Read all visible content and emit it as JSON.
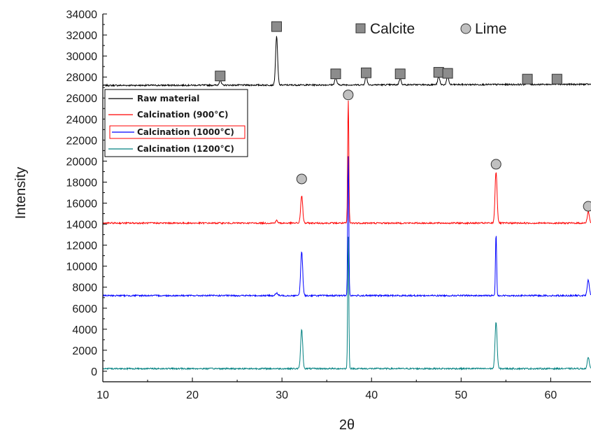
{
  "chart_data": {
    "type": "line",
    "xlabel": "2θ",
    "ylabel": "Intensity",
    "xlim": [
      10,
      64.5
    ],
    "ylim": [
      -1000,
      34000
    ],
    "x_ticks": [
      10,
      20,
      30,
      40,
      50,
      60
    ],
    "y_ticks": [
      0,
      2000,
      4000,
      6000,
      8000,
      10000,
      12000,
      14000,
      16000,
      18000,
      20000,
      22000,
      24000,
      26000,
      28000,
      30000,
      32000,
      34000
    ],
    "grid": false,
    "legend_position": "upper-left",
    "series": [
      {
        "name": "Raw material",
        "color": "#000000",
        "baseline": 27200,
        "peaks": [
          {
            "x": 23.1,
            "y": 27650
          },
          {
            "x": 29.4,
            "y": 31800
          },
          {
            "x": 36.0,
            "y": 27900
          },
          {
            "x": 39.4,
            "y": 28000
          },
          {
            "x": 43.2,
            "y": 27800
          },
          {
            "x": 47.5,
            "y": 27950
          },
          {
            "x": 48.5,
            "y": 28000
          },
          {
            "x": 57.4,
            "y": 27450
          },
          {
            "x": 60.7,
            "y": 27300
          }
        ]
      },
      {
        "name": "Calcination (900°C)",
        "color": "#ff0000",
        "baseline": 14100,
        "peaks": [
          {
            "x": 29.4,
            "y": 14350
          },
          {
            "x": 32.2,
            "y": 16700
          },
          {
            "x": 37.4,
            "y": 25800
          },
          {
            "x": 53.9,
            "y": 19000
          },
          {
            "x": 64.2,
            "y": 15200
          }
        ]
      },
      {
        "name": "Calcination (1000°C)",
        "color": "#0000ff",
        "baseline": 7200,
        "peaks": [
          {
            "x": 29.4,
            "y": 7450
          },
          {
            "x": 32.2,
            "y": 11400
          },
          {
            "x": 37.4,
            "y": 20500
          },
          {
            "x": 53.9,
            "y": 13100
          },
          {
            "x": 64.2,
            "y": 8700
          }
        ]
      },
      {
        "name": "Calcination (1200°C)",
        "color": "#008080",
        "baseline": 250,
        "peaks": [
          {
            "x": 32.2,
            "y": 4000
          },
          {
            "x": 37.4,
            "y": 12800
          },
          {
            "x": 53.9,
            "y": 4700
          },
          {
            "x": 64.2,
            "y": 1300
          }
        ]
      }
    ],
    "annotations": {
      "calcite": {
        "label": "Calcite",
        "marker": "square",
        "color": "#8c8c8c",
        "points": [
          {
            "x": 23.1,
            "y": 28100
          },
          {
            "x": 29.4,
            "y": 32800
          },
          {
            "x": 36.0,
            "y": 28300
          },
          {
            "x": 39.4,
            "y": 28400
          },
          {
            "x": 43.2,
            "y": 28300
          },
          {
            "x": 47.5,
            "y": 28450
          },
          {
            "x": 48.5,
            "y": 28350
          },
          {
            "x": 57.4,
            "y": 27800
          },
          {
            "x": 60.7,
            "y": 27800
          }
        ]
      },
      "lime": {
        "label": "Lime",
        "marker": "circle",
        "color": "#c0c0c0",
        "points": [
          {
            "x": 32.2,
            "y": 18300
          },
          {
            "x": 37.4,
            "y": 26300
          },
          {
            "x": 53.9,
            "y": 19700
          },
          {
            "x": 64.2,
            "y": 15700
          }
        ]
      }
    }
  }
}
